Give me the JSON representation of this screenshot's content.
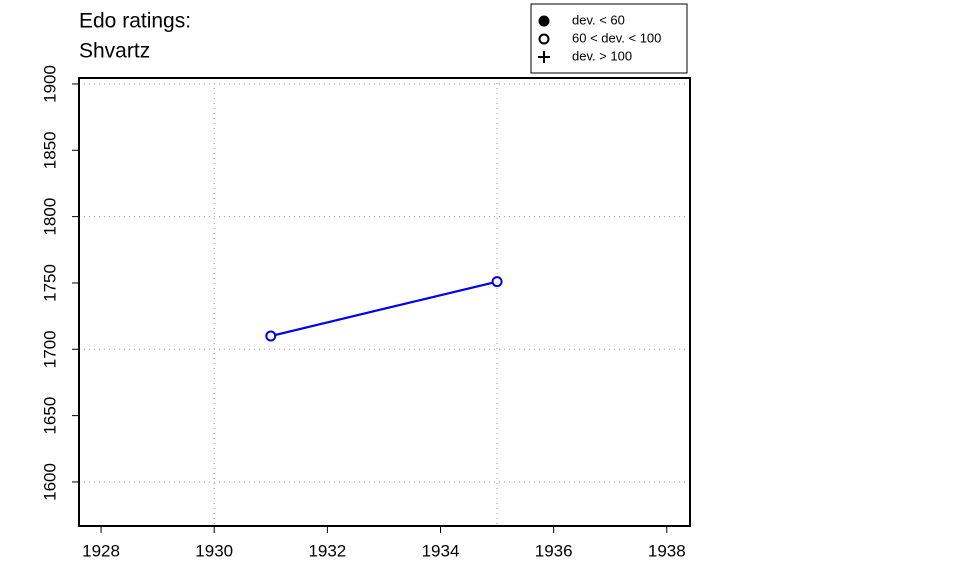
{
  "chart_data": {
    "type": "line",
    "title": "Edo ratings:",
    "subtitle": "Shvartz",
    "x": [
      1931,
      1935
    ],
    "values": [
      1710,
      1751
    ],
    "color": "#0000ee",
    "marker": "open-circle",
    "xlim": [
      1927.61,
      1938.41
    ],
    "ylim": [
      1566.8,
      1904.5
    ],
    "xticks": [
      1928,
      1930,
      1932,
      1934,
      1936,
      1938
    ],
    "yticks": [
      1600,
      1650,
      1700,
      1750,
      1800,
      1850,
      1900
    ],
    "grid_x": [
      1930,
      1935
    ],
    "grid_y": [
      1600,
      1700,
      1800,
      1900
    ],
    "legend_position": "top-right",
    "legend": [
      {
        "label": "dev. < 60",
        "marker": "filled-circle"
      },
      {
        "label": "60 < dev. < 100",
        "marker": "open-circle"
      },
      {
        "label": "dev. > 100",
        "marker": "plus"
      }
    ]
  }
}
